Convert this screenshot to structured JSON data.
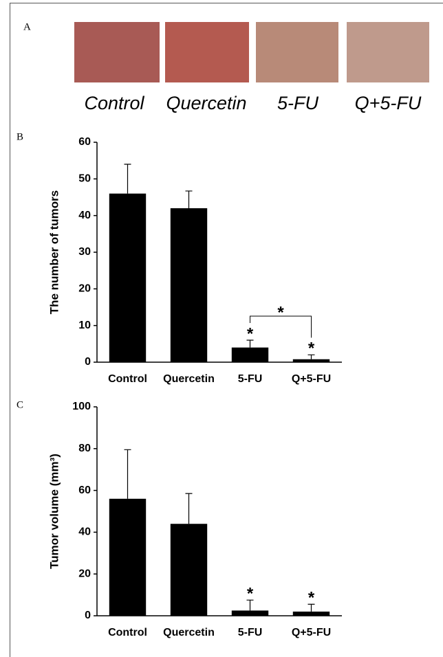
{
  "panel_labels": [
    "A",
    "B",
    "C"
  ],
  "photo_labels": [
    "Control",
    "Quercetin",
    "5-FU",
    "Q+5-FU"
  ],
  "chart_data": [
    {
      "type": "bar",
      "ylabel": "The number of tumors",
      "categories": [
        "Control",
        "Quercetin",
        "5-FU",
        "Q+5-FU"
      ],
      "values": [
        46,
        42,
        4,
        0.8
      ],
      "errors": [
        8,
        4.7,
        2,
        1.2
      ],
      "markers": [
        null,
        null,
        "*",
        "*"
      ],
      "bracket": {
        "label": "*",
        "from": "5-FU",
        "to": "Q+5-FU"
      },
      "color": "#000000",
      "ylim": [
        0,
        60
      ],
      "yticks": [
        0,
        10,
        20,
        30,
        40,
        50,
        60
      ]
    },
    {
      "type": "bar",
      "ylabel": "Tumor volume (mm³)",
      "categories": [
        "Control",
        "Quercetin",
        "5-FU",
        "Q+5-FU"
      ],
      "values": [
        56,
        44,
        2.5,
        2
      ],
      "errors": [
        23.5,
        14.5,
        5,
        3.5
      ],
      "markers": [
        null,
        null,
        "*",
        "*"
      ],
      "color": "#000000",
      "ylim": [
        0,
        100
      ],
      "yticks": [
        0,
        20,
        40,
        60,
        80,
        100
      ]
    }
  ]
}
